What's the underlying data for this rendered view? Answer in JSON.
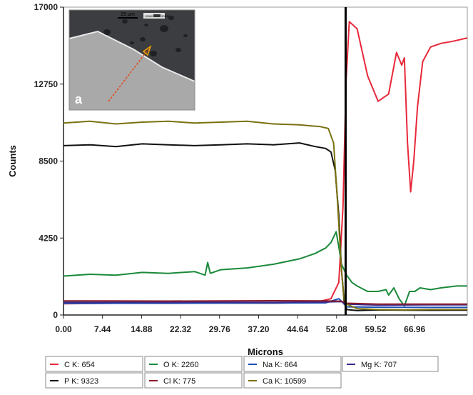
{
  "chart_data": {
    "type": "line",
    "xlabel": "Microns",
    "ylabel": "Counts",
    "xlim": [
      0,
      77
    ],
    "ylim": [
      0,
      17000
    ],
    "xticks": [
      "0.00",
      "7.44",
      "14.88",
      "22.32",
      "29.76",
      "37.20",
      "44.64",
      "52.08",
      "59.52",
      "66.96"
    ],
    "yticks": [
      "0",
      "4250",
      "8500",
      "12750",
      "17000"
    ],
    "marker_x": 53.8,
    "grid": false,
    "legend_position": "bottom",
    "series": [
      {
        "name": "C K: 654",
        "color": "#e8283a",
        "x": [
          0,
          10,
          20,
          30,
          40,
          48,
          51,
          52.5,
          53.3,
          53.9,
          54.5,
          56,
          58,
          60,
          62,
          63.5,
          64.5,
          65,
          65.6,
          66.2,
          66.8,
          67.5,
          68.5,
          70,
          72,
          74,
          77
        ],
        "y": [
          620,
          650,
          640,
          660,
          650,
          700,
          900,
          1800,
          6000,
          13000,
          16200,
          15800,
          13200,
          11800,
          12200,
          14500,
          13800,
          14200,
          9500,
          6800,
          8500,
          11500,
          14000,
          14800,
          15000,
          15100,
          15300
        ]
      },
      {
        "name": "O K: 2260",
        "color": "#1a8a3a",
        "x": [
          0,
          5,
          10,
          15,
          20,
          25,
          27,
          27.5,
          28,
          30,
          35,
          40,
          45,
          48,
          50,
          51,
          52,
          52.6,
          53,
          53.5,
          54,
          55,
          56,
          58,
          60,
          61.5,
          62,
          63,
          64,
          65,
          66,
          67,
          68,
          70,
          72,
          75,
          77
        ],
        "y": [
          2150,
          2250,
          2200,
          2350,
          2300,
          2400,
          2200,
          2900,
          2300,
          2500,
          2600,
          2800,
          3100,
          3400,
          3700,
          4000,
          4600,
          3600,
          2800,
          2500,
          2200,
          1800,
          1600,
          1300,
          1300,
          1400,
          1100,
          1500,
          900,
          500,
          1300,
          1300,
          1500,
          1400,
          1500,
          1600,
          1600
        ]
      },
      {
        "name": "Na K: 664",
        "color": "#1f4fb4",
        "x": [
          0,
          20,
          40,
          50,
          52.5,
          53.2,
          54,
          60,
          70,
          77
        ],
        "y": [
          640,
          650,
          660,
          670,
          900,
          700,
          450,
          430,
          420,
          420
        ]
      },
      {
        "name": "Mg K: 707",
        "color": "#3a2a8c",
        "x": [
          0,
          20,
          40,
          50,
          53,
          54,
          60,
          70,
          77
        ],
        "y": [
          700,
          710,
          700,
          720,
          740,
          600,
          550,
          560,
          560
        ]
      },
      {
        "name": "P K: 9323",
        "color": "#111111",
        "x": [
          0,
          5,
          10,
          15,
          20,
          25,
          30,
          35,
          40,
          45,
          48,
          50,
          51,
          51.8,
          52.5,
          53,
          53.5,
          54,
          56,
          60,
          65,
          70,
          77
        ],
        "y": [
          9350,
          9400,
          9300,
          9450,
          9400,
          9350,
          9400,
          9450,
          9400,
          9500,
          9300,
          9200,
          9000,
          8000,
          5500,
          2500,
          800,
          300,
          250,
          280,
          270,
          260,
          270
        ]
      },
      {
        "name": "Cl K: 775",
        "color": "#8a1a2a",
        "x": [
          0,
          20,
          40,
          50,
          53,
          54,
          60,
          70,
          77
        ],
        "y": [
          780,
          770,
          790,
          780,
          760,
          650,
          600,
          600,
          600
        ]
      },
      {
        "name": "Ca K: 10599",
        "color": "#7a7210",
        "x": [
          0,
          5,
          10,
          15,
          20,
          25,
          30,
          35,
          40,
          45,
          47,
          49,
          50.5,
          51.5,
          52.2,
          53,
          53.5,
          54,
          56,
          60,
          65,
          70,
          77
        ],
        "y": [
          10600,
          10700,
          10550,
          10650,
          10700,
          10600,
          10650,
          10700,
          10550,
          10500,
          10450,
          10400,
          10300,
          9500,
          6500,
          2500,
          900,
          600,
          350,
          300,
          280,
          300,
          300
        ]
      }
    ],
    "inset": {
      "label": "a",
      "scalebar": "25 μm",
      "colorbar_min": "12840",
      "colorbar_max": "50535"
    }
  }
}
